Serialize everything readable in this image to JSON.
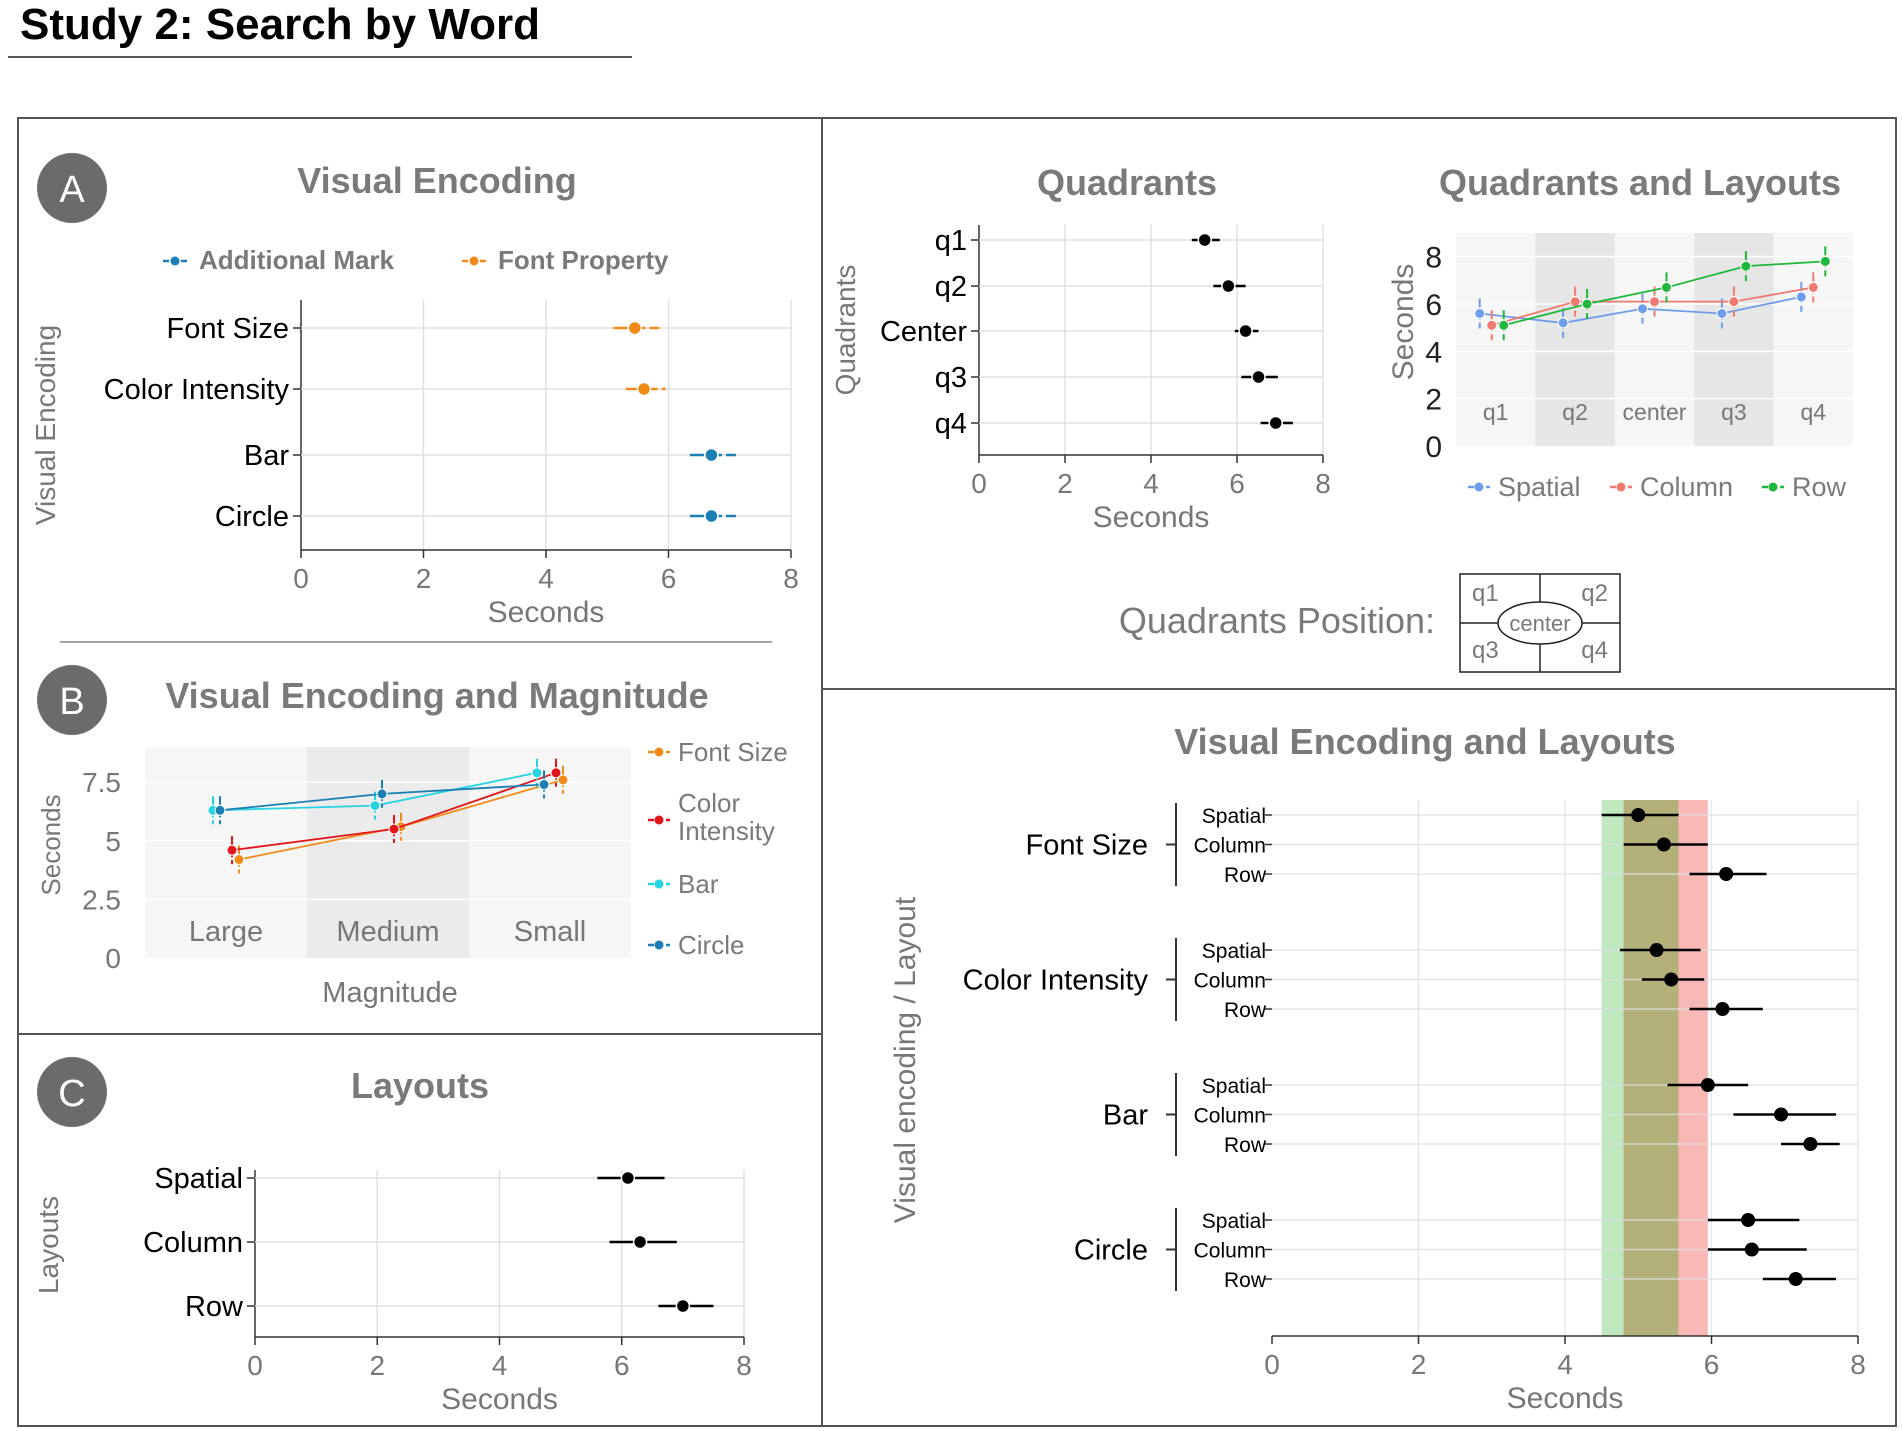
{
  "page_title": "Study 2: Search by Word",
  "colors": {
    "additional_mark": "#1a7fb5",
    "font_property": "#f28a1a",
    "font_size_line": "#f28a1a",
    "color_intensity_line": "#e0161b",
    "bar_line": "#27d3e0",
    "circle_line": "#1a7fb5",
    "spatial": "#6d9eeb",
    "column": "#f07a6f",
    "row": "#1fb83a",
    "badge": "#6b6b6b",
    "title_gray": "#7a7a7a",
    "green_band": "#bfe8be",
    "red_band": "#f7b8b6",
    "overlap_band": "#b3b07a"
  },
  "panels": {
    "A": {
      "badge": "A",
      "title": "Visual Encoding"
    },
    "B": {
      "badge": "B",
      "title": "Visual Encoding and Magnitude"
    },
    "C": {
      "badge": "C",
      "title": "Layouts"
    },
    "quadrants": {
      "title": "Quadrants"
    },
    "quad_layouts": {
      "title": "Quadrants and Layouts"
    },
    "quad_position": {
      "label": "Quadrants Position:",
      "cells": [
        "q1",
        "q2",
        "q3",
        "q4"
      ],
      "center": "center"
    },
    "enc_layouts": {
      "title": "Visual Encoding and Layouts"
    }
  },
  "chart_data": [
    {
      "id": "A",
      "type": "scatter",
      "title": "Visual Encoding",
      "xlabel": "Seconds",
      "ylabel": "Visual Encoding",
      "xlim": [
        0,
        8
      ],
      "xticks": [
        "0",
        "2",
        "4",
        "6",
        "8"
      ],
      "categories": [
        "Font Size",
        "Color Intensity",
        "Bar",
        "Circle"
      ],
      "legend": [
        {
          "name": "Additional Mark",
          "color_key": "additional_mark"
        },
        {
          "name": "Font Property",
          "color_key": "font_property"
        }
      ],
      "points": [
        {
          "category": "Font Size",
          "series": "Font Property",
          "mean": 5.45,
          "lo": 5.1,
          "hi": 5.85
        },
        {
          "category": "Color Intensity",
          "series": "Font Property",
          "mean": 5.6,
          "lo": 5.3,
          "hi": 5.95
        },
        {
          "category": "Bar",
          "series": "Additional Mark",
          "mean": 6.7,
          "lo": 6.35,
          "hi": 7.1
        },
        {
          "category": "Circle",
          "series": "Additional Mark",
          "mean": 6.7,
          "lo": 6.35,
          "hi": 7.1
        }
      ]
    },
    {
      "id": "B",
      "type": "line",
      "title": "Visual Encoding and Magnitude",
      "xlabel": "Magnitude",
      "ylabel": "Seconds",
      "ylim": [
        0,
        9
      ],
      "yticks": [
        "0",
        "2.5",
        "5",
        "7.5"
      ],
      "categories": [
        "Large",
        "Medium",
        "Small"
      ],
      "series": [
        {
          "name": "Font Size",
          "color_key": "font_size_line",
          "values": [
            4.2,
            5.6,
            7.6
          ]
        },
        {
          "name": "Color Intensity",
          "color_key": "color_intensity_line",
          "values": [
            4.6,
            5.5,
            7.9
          ]
        },
        {
          "name": "Bar",
          "color_key": "bar_line",
          "values": [
            6.3,
            6.5,
            7.9
          ]
        },
        {
          "name": "Circle",
          "color_key": "circle_line",
          "values": [
            6.3,
            7.0,
            7.4
          ]
        }
      ],
      "legend_labels": [
        "Font Size",
        "Color\nIntensity",
        "Bar",
        "Circle"
      ]
    },
    {
      "id": "C",
      "type": "scatter",
      "title": "Layouts",
      "xlabel": "Seconds",
      "ylabel": "Layouts",
      "xlim": [
        0,
        8
      ],
      "xticks": [
        "0",
        "2",
        "4",
        "6",
        "8"
      ],
      "categories": [
        "Spatial",
        "Column",
        "Row"
      ],
      "points": [
        {
          "category": "Spatial",
          "mean": 6.1,
          "lo": 5.6,
          "hi": 6.7
        },
        {
          "category": "Column",
          "mean": 6.3,
          "lo": 5.8,
          "hi": 6.9
        },
        {
          "category": "Row",
          "mean": 7.0,
          "lo": 6.6,
          "hi": 7.5
        }
      ]
    },
    {
      "id": "quadrants",
      "type": "scatter",
      "title": "Quadrants",
      "xlabel": "Seconds",
      "ylabel": "Quadrants",
      "xlim": [
        0,
        8
      ],
      "xticks": [
        "0",
        "2",
        "4",
        "6",
        "8"
      ],
      "categories": [
        "q1",
        "q2",
        "Center",
        "q3",
        "q4"
      ],
      "points": [
        {
          "category": "q1",
          "mean": 5.25,
          "lo": 4.95,
          "hi": 5.6
        },
        {
          "category": "q2",
          "mean": 5.8,
          "lo": 5.45,
          "hi": 6.2
        },
        {
          "category": "Center",
          "mean": 6.2,
          "lo": 5.95,
          "hi": 6.5
        },
        {
          "category": "q3",
          "mean": 6.5,
          "lo": 6.1,
          "hi": 6.95
        },
        {
          "category": "q4",
          "mean": 6.9,
          "lo": 6.55,
          "hi": 7.3
        }
      ]
    },
    {
      "id": "quad_layouts",
      "type": "line",
      "title": "Quadrants and Layouts",
      "ylabel": "Seconds",
      "ylim": [
        0,
        9
      ],
      "yticks": [
        "0",
        "2",
        "4",
        "6",
        "8"
      ],
      "categories": [
        "q1",
        "q2",
        "center",
        "q3",
        "q4"
      ],
      "series": [
        {
          "name": "Spatial",
          "color_key": "spatial",
          "values": [
            5.6,
            5.2,
            5.8,
            5.6,
            6.3
          ]
        },
        {
          "name": "Column",
          "color_key": "column",
          "values": [
            5.1,
            6.1,
            6.1,
            6.1,
            6.7
          ]
        },
        {
          "name": "Row",
          "color_key": "row",
          "values": [
            5.1,
            6.0,
            6.7,
            7.6,
            7.8
          ]
        }
      ]
    },
    {
      "id": "enc_layouts",
      "type": "scatter",
      "title": "Visual Encoding and Layouts",
      "xlabel": "Seconds",
      "ylabel": "Visual encoding / Layout",
      "xlim": [
        0,
        8
      ],
      "xticks": [
        "0",
        "2",
        "4",
        "6",
        "8"
      ],
      "groups": [
        "Font Size",
        "Color Intensity",
        "Bar",
        "Circle"
      ],
      "layouts": [
        "Spatial",
        "Column",
        "Row"
      ],
      "bands": [
        {
          "color_key": "green_band",
          "from": 4.5,
          "to": 5.55
        },
        {
          "color_key": "red_band",
          "from": 4.8,
          "to": 5.95
        }
      ],
      "points": [
        {
          "group": "Font Size",
          "layout": "Spatial",
          "mean": 5.0,
          "lo": 4.5,
          "hi": 5.55
        },
        {
          "group": "Font Size",
          "layout": "Column",
          "mean": 5.35,
          "lo": 4.8,
          "hi": 5.95
        },
        {
          "group": "Font Size",
          "layout": "Row",
          "mean": 6.2,
          "lo": 5.7,
          "hi": 6.75
        },
        {
          "group": "Color Intensity",
          "layout": "Spatial",
          "mean": 5.25,
          "lo": 4.75,
          "hi": 5.85
        },
        {
          "group": "Color Intensity",
          "layout": "Column",
          "mean": 5.45,
          "lo": 5.05,
          "hi": 5.9
        },
        {
          "group": "Color Intensity",
          "layout": "Row",
          "mean": 6.15,
          "lo": 5.7,
          "hi": 6.7
        },
        {
          "group": "Bar",
          "layout": "Spatial",
          "mean": 5.95,
          "lo": 5.4,
          "hi": 6.5
        },
        {
          "group": "Bar",
          "layout": "Column",
          "mean": 6.95,
          "lo": 6.3,
          "hi": 7.7
        },
        {
          "group": "Bar",
          "layout": "Row",
          "mean": 7.35,
          "lo": 6.95,
          "hi": 7.75
        },
        {
          "group": "Circle",
          "layout": "Spatial",
          "mean": 6.5,
          "lo": 5.95,
          "hi": 7.2
        },
        {
          "group": "Circle",
          "layout": "Column",
          "mean": 6.55,
          "lo": 5.95,
          "hi": 7.3
        },
        {
          "group": "Circle",
          "layout": "Row",
          "mean": 7.15,
          "lo": 6.7,
          "hi": 7.7
        }
      ]
    }
  ]
}
